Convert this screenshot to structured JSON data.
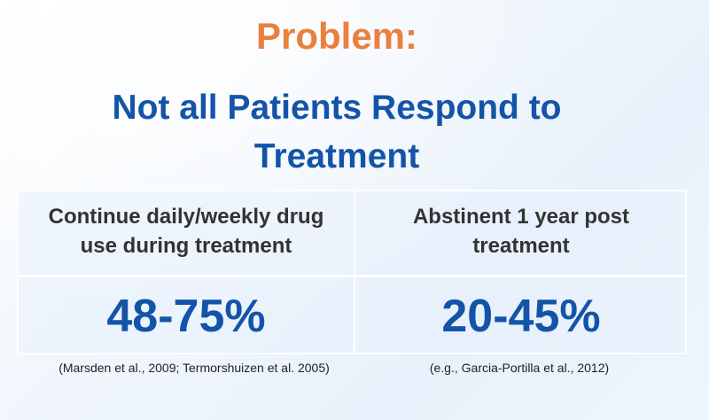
{
  "slide": {
    "title": "Problem:",
    "subtitle_line1": "Not all Patients Respond to",
    "subtitle_line2": "Treatment",
    "colors": {
      "title": "#E9803E",
      "subtitle": "#1454A8",
      "value": "#1454A8"
    }
  },
  "table": {
    "columns": [
      {
        "header_line1": "Continue daily/weekly drug",
        "header_line2": "use during treatment",
        "value": "48-75%",
        "citation": "(Marsden et al., 2009; Termorshuizen et al. 2005)"
      },
      {
        "header_line1": "Abstinent 1 year post",
        "header_line2": "treatment",
        "value": "20-45%",
        "citation": "(e.g., Garcia-Portilla et al., 2012)"
      }
    ]
  }
}
